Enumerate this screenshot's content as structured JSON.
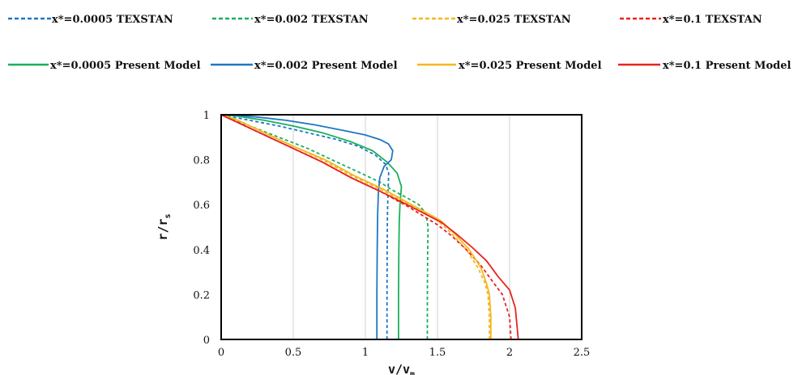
{
  "chart_data": {
    "type": "line",
    "xlabel_main": "v/v",
    "xlabel_sub": "m",
    "ylabel_main": "r/r",
    "ylabel_sub": "s",
    "xlim": [
      0,
      2.5
    ],
    "ylim": [
      0,
      1
    ],
    "xticks": [
      "0",
      "0.5",
      "1",
      "1.5",
      "2",
      "2.5"
    ],
    "yticks": [
      "0",
      "0.2",
      "0.4",
      "0.6",
      "0.8",
      "1"
    ],
    "grid": "vertical",
    "legend_position": "top",
    "series": [
      {
        "name": "x*=0.0005 TEXSTAN",
        "color": "#1f77c4",
        "dash": true,
        "x": [
          1.15,
          1.15,
          1.151,
          1.153,
          1.157,
          1.162,
          1.14,
          1.07,
          0.95,
          0.8,
          0.6,
          0.4,
          0.2,
          0
        ],
        "y": [
          0,
          0.2,
          0.4,
          0.55,
          0.65,
          0.74,
          0.78,
          0.82,
          0.86,
          0.89,
          0.92,
          0.95,
          0.975,
          1
        ]
      },
      {
        "name": "x*=0.002 TEXSTAN",
        "color": "#19b05a",
        "dash": true,
        "x": [
          1.43,
          1.43,
          1.432,
          1.435,
          1.42,
          1.37,
          1.29,
          1.2,
          1.1,
          0.97,
          0.8,
          0.6,
          0.4,
          0.2,
          0
        ],
        "y": [
          0,
          0.2,
          0.4,
          0.5,
          0.56,
          0.6,
          0.63,
          0.66,
          0.7,
          0.74,
          0.79,
          0.85,
          0.9,
          0.95,
          1
        ]
      },
      {
        "name": "x*=0.025 TEXSTAN",
        "color": "#f5b71e",
        "dash": true,
        "x": [
          1.86,
          1.86,
          1.85,
          1.83,
          1.78,
          1.7,
          1.6,
          1.5,
          1.3,
          1.1,
          0.9,
          0.7,
          0.5,
          0.3,
          0.1,
          0
        ],
        "y": [
          0,
          0.1,
          0.2,
          0.25,
          0.32,
          0.4,
          0.47,
          0.53,
          0.6,
          0.67,
          0.73,
          0.8,
          0.86,
          0.92,
          0.98,
          1
        ]
      },
      {
        "name": "x*=0.1 TEXSTAN",
        "color": "#e8231e",
        "dash": true,
        "x": [
          2.01,
          2.0,
          1.95,
          1.88,
          1.8,
          1.7,
          1.6,
          1.5,
          1.3,
          1.1,
          0.9,
          0.7,
          0.5,
          0.3,
          0.1,
          0
        ],
        "y": [
          0,
          0.1,
          0.2,
          0.26,
          0.33,
          0.4,
          0.46,
          0.51,
          0.59,
          0.66,
          0.72,
          0.79,
          0.85,
          0.91,
          0.97,
          1
        ]
      },
      {
        "name": "x*=0.0005 Present Model",
        "color": "#19b05a",
        "dash": false,
        "x": [
          1.23,
          1.23,
          1.232,
          1.235,
          1.24,
          1.25,
          1.22,
          1.15,
          1.05,
          0.9,
          0.7,
          0.5,
          0.3,
          0.1,
          0
        ],
        "y": [
          0,
          0.2,
          0.4,
          0.52,
          0.6,
          0.68,
          0.74,
          0.79,
          0.84,
          0.88,
          0.92,
          0.95,
          0.975,
          0.995,
          1
        ]
      },
      {
        "name": "x*=0.002 Present Model",
        "color": "#1f77c4",
        "dash": false,
        "x": [
          1.08,
          1.08,
          1.082,
          1.085,
          1.09,
          1.1,
          1.13,
          1.18,
          1.19,
          1.16,
          1.1,
          1.0,
          0.85,
          0.65,
          0.45,
          0.25,
          0.1,
          0
        ],
        "y": [
          0,
          0.2,
          0.4,
          0.55,
          0.65,
          0.72,
          0.77,
          0.8,
          0.84,
          0.87,
          0.89,
          0.91,
          0.93,
          0.955,
          0.975,
          0.99,
          0.998,
          1
        ]
      },
      {
        "name": "x*=0.025 Present Model",
        "color": "#f5b71e",
        "dash": false,
        "x": [
          1.87,
          1.87,
          1.86,
          1.84,
          1.8,
          1.72,
          1.62,
          1.52,
          1.32,
          1.12,
          0.92,
          0.72,
          0.5,
          0.3,
          0.1,
          0
        ],
        "y": [
          0,
          0.1,
          0.2,
          0.25,
          0.32,
          0.4,
          0.47,
          0.53,
          0.6,
          0.67,
          0.73,
          0.8,
          0.86,
          0.92,
          0.98,
          1
        ]
      },
      {
        "name": "x*=0.1 Present Model",
        "color": "#e8231e",
        "dash": false,
        "x": [
          2.06,
          2.04,
          2.0,
          1.92,
          1.84,
          1.74,
          1.63,
          1.53,
          1.32,
          1.1,
          0.9,
          0.7,
          0.5,
          0.3,
          0.1,
          0
        ],
        "y": [
          0,
          0.14,
          0.22,
          0.28,
          0.35,
          0.41,
          0.47,
          0.52,
          0.59,
          0.66,
          0.72,
          0.79,
          0.85,
          0.91,
          0.97,
          1
        ]
      }
    ]
  }
}
